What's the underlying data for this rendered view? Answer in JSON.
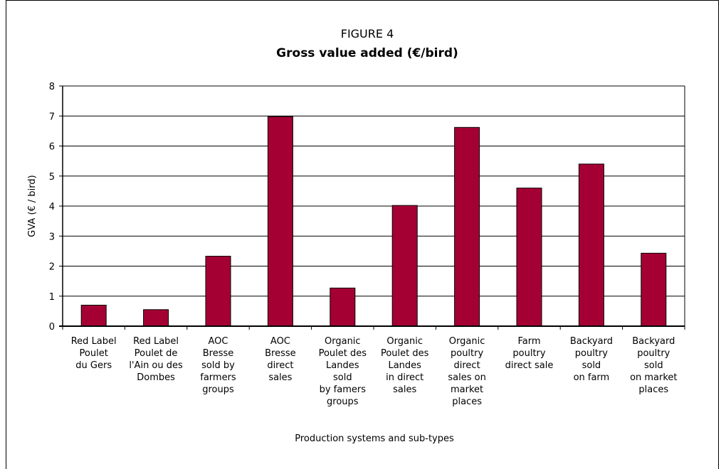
{
  "figure_label": "FIGURE 4",
  "chart_data": {
    "type": "bar",
    "title": "Gross value added (€/bird)",
    "xlabel": "Production systems and sub-types",
    "ylabel": "GVA (€ / bird)",
    "ylim": [
      0,
      8
    ],
    "yticks": [
      "0",
      "1",
      "2",
      "3",
      "4",
      "5",
      "6",
      "7",
      "8"
    ],
    "grid": true,
    "bar_color": "#A50034",
    "categories": [
      [
        "Red Label",
        "Poulet",
        "du Gers"
      ],
      [
        "Red Label",
        "Poulet de",
        "l'Ain ou des",
        "Dombes"
      ],
      [
        "AOC",
        "Bresse",
        "sold by",
        "farmers",
        "groups"
      ],
      [
        "AOC",
        "Bresse",
        "direct",
        "sales"
      ],
      [
        "Organic",
        "Poulet des",
        "Landes",
        "sold",
        "by famers",
        "groups"
      ],
      [
        "Organic",
        "Poulet des",
        "Landes",
        "in direct",
        "sales"
      ],
      [
        "Organic",
        "poultry",
        "direct",
        "sales on",
        "market",
        "places"
      ],
      [
        "Farm",
        "poultry",
        "direct sale"
      ],
      [
        "Backyard",
        "poultry",
        "sold",
        "on farm"
      ],
      [
        "Backyard",
        "poultry",
        "sold",
        "on market",
        "places"
      ]
    ],
    "values": [
      0.7,
      0.55,
      2.33,
      6.98,
      1.27,
      4.02,
      6.62,
      4.6,
      5.4,
      2.43
    ]
  }
}
